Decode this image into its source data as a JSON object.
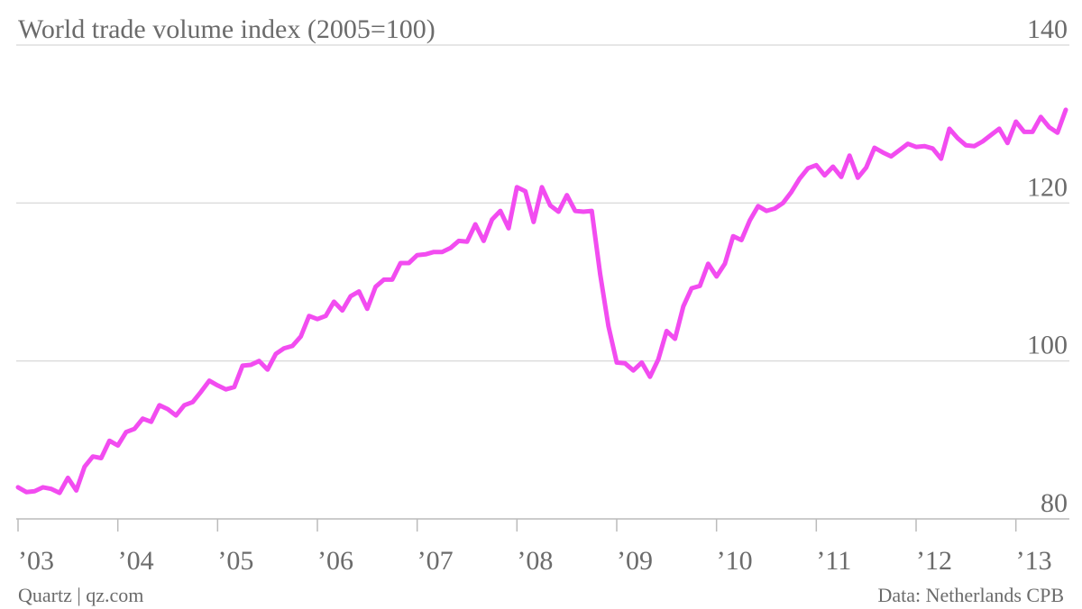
{
  "chart_data": {
    "type": "line",
    "title": "World trade volume index (2005=100)",
    "credit": "Quartz | qz.com",
    "source": "Data: Netherlands CPB",
    "x": [
      "2003-01",
      "2003-02",
      "2003-03",
      "2003-04",
      "2003-05",
      "2003-06",
      "2003-07",
      "2003-08",
      "2003-09",
      "2003-10",
      "2003-11",
      "2003-12",
      "2004-01",
      "2004-02",
      "2004-03",
      "2004-04",
      "2004-05",
      "2004-06",
      "2004-07",
      "2004-08",
      "2004-09",
      "2004-10",
      "2004-11",
      "2004-12",
      "2005-01",
      "2005-02",
      "2005-03",
      "2005-04",
      "2005-05",
      "2005-06",
      "2005-07",
      "2005-08",
      "2005-09",
      "2005-10",
      "2005-11",
      "2005-12",
      "2006-01",
      "2006-02",
      "2006-03",
      "2006-04",
      "2006-05",
      "2006-06",
      "2006-07",
      "2006-08",
      "2006-09",
      "2006-10",
      "2006-11",
      "2006-12",
      "2007-01",
      "2007-02",
      "2007-03",
      "2007-04",
      "2007-05",
      "2007-06",
      "2007-07",
      "2007-08",
      "2007-09",
      "2007-10",
      "2007-11",
      "2007-12",
      "2008-01",
      "2008-02",
      "2008-03",
      "2008-04",
      "2008-05",
      "2008-06",
      "2008-07",
      "2008-08",
      "2008-09",
      "2008-10",
      "2008-11",
      "2008-12",
      "2009-01",
      "2009-02",
      "2009-03",
      "2009-04",
      "2009-05",
      "2009-06",
      "2009-07",
      "2009-08",
      "2009-09",
      "2009-10",
      "2009-11",
      "2009-12",
      "2010-01",
      "2010-02",
      "2010-03",
      "2010-04",
      "2010-05",
      "2010-06",
      "2010-07",
      "2010-08",
      "2010-09",
      "2010-10",
      "2010-11",
      "2010-12",
      "2011-01",
      "2011-02",
      "2011-03",
      "2011-04",
      "2011-05",
      "2011-06",
      "2011-07",
      "2011-08",
      "2011-09",
      "2011-10",
      "2011-11",
      "2011-12",
      "2012-01",
      "2012-02",
      "2012-03",
      "2012-04",
      "2012-05",
      "2012-06",
      "2012-07",
      "2012-08",
      "2012-09",
      "2012-10",
      "2012-11",
      "2012-12",
      "2013-01",
      "2013-02",
      "2013-03",
      "2013-04",
      "2013-05",
      "2013-06",
      "2013-07"
    ],
    "series": [
      {
        "color": "#f24cf0",
        "values": [
          84.0,
          83.4,
          83.5,
          84.0,
          83.8,
          83.3,
          85.2,
          83.6,
          86.6,
          87.9,
          87.7,
          89.9,
          89.3,
          91.0,
          91.4,
          92.7,
          92.3,
          94.4,
          93.9,
          93.1,
          94.4,
          94.8,
          96.1,
          97.5,
          96.9,
          96.4,
          96.7,
          99.4,
          99.5,
          100.0,
          98.9,
          100.9,
          101.6,
          101.9,
          103.1,
          105.7,
          105.3,
          105.7,
          107.5,
          106.4,
          108.2,
          108.8,
          106.6,
          109.4,
          110.3,
          110.3,
          112.4,
          112.4,
          113.4,
          113.5,
          113.8,
          113.8,
          114.3,
          115.2,
          115.1,
          117.3,
          115.2,
          117.9,
          119.0,
          116.8,
          122.0,
          121.5,
          117.6,
          122.0,
          119.7,
          118.9,
          121.0,
          119.0,
          118.9,
          119.0,
          111.0,
          104.4,
          99.8,
          99.7,
          98.8,
          99.8,
          98.0,
          100.2,
          103.8,
          102.8,
          106.9,
          109.2,
          109.5,
          112.3,
          110.7,
          112.3,
          115.8,
          115.3,
          117.8,
          119.6,
          119.0,
          119.3,
          120.0,
          121.4,
          123.1,
          124.4,
          124.8,
          123.5,
          124.6,
          123.3,
          126.0,
          123.2,
          124.5,
          127.0,
          126.4,
          125.9,
          126.7,
          127.5,
          127.1,
          127.2,
          126.9,
          125.6,
          129.4,
          128.2,
          127.3,
          127.2,
          127.8,
          128.6,
          129.4,
          127.6,
          130.3,
          129.0,
          129.0,
          130.9,
          129.6,
          128.9,
          131.8
        ]
      }
    ],
    "xlim": [
      "2003-01",
      "2013-07"
    ],
    "xticks": [
      {
        "value": "2003-01",
        "label": "’03"
      },
      {
        "value": "2004-01",
        "label": "’04"
      },
      {
        "value": "2005-01",
        "label": "’05"
      },
      {
        "value": "2006-01",
        "label": "’06"
      },
      {
        "value": "2007-01",
        "label": "’07"
      },
      {
        "value": "2008-01",
        "label": "’08"
      },
      {
        "value": "2009-01",
        "label": "’09"
      },
      {
        "value": "2010-01",
        "label": "’10"
      },
      {
        "value": "2011-01",
        "label": "’11"
      },
      {
        "value": "2012-01",
        "label": "’12"
      },
      {
        "value": "2013-01",
        "label": "’13"
      }
    ],
    "ylim": [
      80,
      140
    ],
    "yticks": [
      80,
      100,
      120,
      140
    ],
    "grid": true
  }
}
